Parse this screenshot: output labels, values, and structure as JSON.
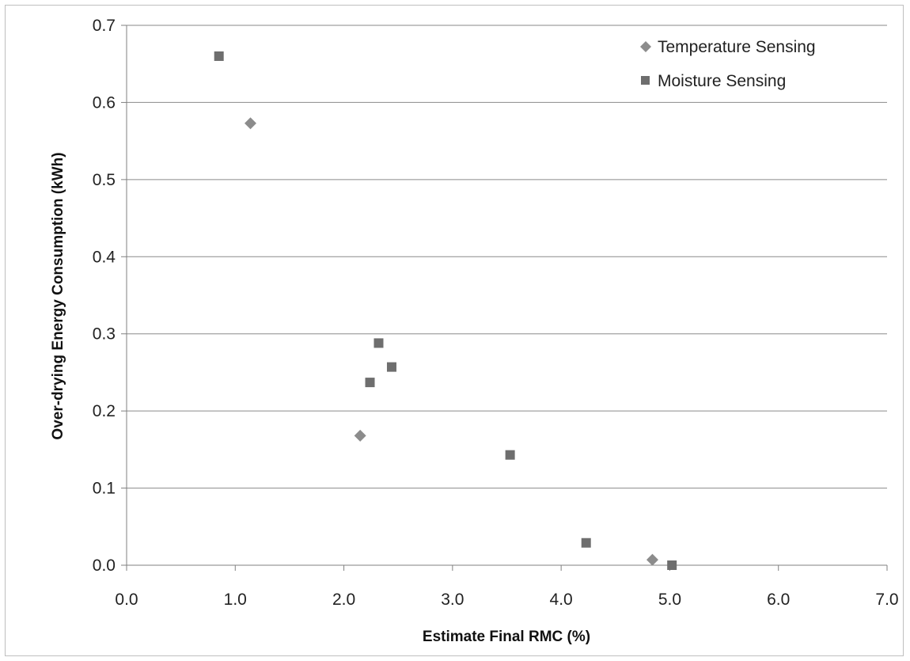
{
  "chart_data": {
    "type": "scatter",
    "title": "",
    "xlabel": "Estimate Final RMC (%)",
    "ylabel": "Over-drying Energy Consumption (kWh)",
    "xlim": [
      0,
      7
    ],
    "ylim": [
      0,
      0.7
    ],
    "x_ticks": [
      "0.0",
      "1.0",
      "2.0",
      "3.0",
      "4.0",
      "5.0",
      "6.0",
      "7.0"
    ],
    "y_ticks": [
      "0.0",
      "0.1",
      "0.2",
      "0.3",
      "0.4",
      "0.5",
      "0.6",
      "0.7"
    ],
    "grid": "horizontal",
    "legend_position": "top-right",
    "series": [
      {
        "name": "Temperature Sensing",
        "marker": "diamond",
        "color": "#8c8c8c",
        "points": [
          {
            "x": 1.14,
            "y": 0.573
          },
          {
            "x": 2.15,
            "y": 0.168
          },
          {
            "x": 4.84,
            "y": 0.007
          }
        ]
      },
      {
        "name": "Moisture Sensing",
        "marker": "square",
        "color": "#6e6e6e",
        "points": [
          {
            "x": 0.85,
            "y": 0.66
          },
          {
            "x": 2.32,
            "y": 0.288
          },
          {
            "x": 2.44,
            "y": 0.257
          },
          {
            "x": 2.24,
            "y": 0.237
          },
          {
            "x": 3.53,
            "y": 0.143
          },
          {
            "x": 4.23,
            "y": 0.029
          },
          {
            "x": 5.02,
            "y": 0.0
          }
        ]
      }
    ]
  }
}
